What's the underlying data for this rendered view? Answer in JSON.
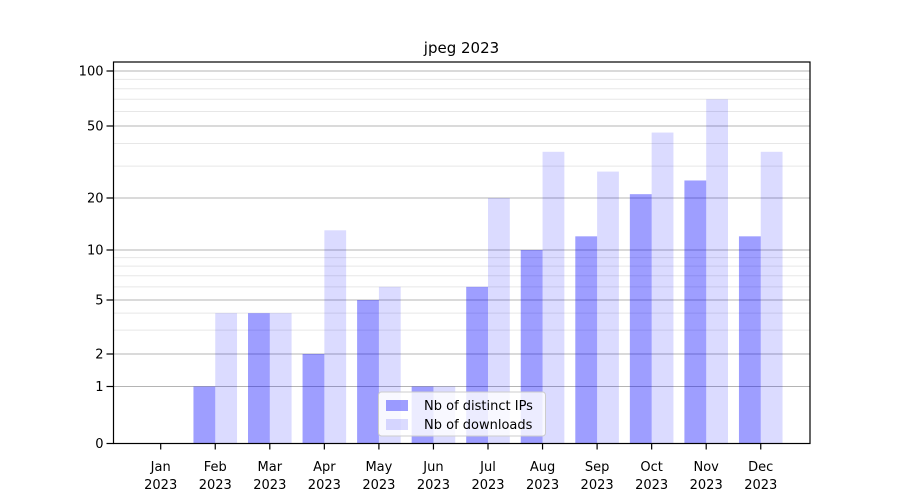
{
  "chart_data": {
    "type": "bar",
    "title": "jpeg 2023",
    "categories": [
      "Jan",
      "Feb",
      "Mar",
      "Apr",
      "May",
      "Jun",
      "Jul",
      "Aug",
      "Sep",
      "Oct",
      "Nov",
      "Dec"
    ],
    "year_label": "2023",
    "series": [
      {
        "name": "Nb of distinct IPs",
        "color": "rgba(0,0,255,0.38)",
        "color_hex": "#9e9eff",
        "values": [
          0,
          1,
          4,
          2,
          5,
          1,
          6,
          10,
          12,
          21,
          25,
          12
        ]
      },
      {
        "name": "Nb of downloads",
        "color": "rgba(0,0,255,0.14)",
        "color_hex": "#dcdcff",
        "values": [
          0,
          4,
          4,
          13,
          6,
          1,
          20,
          36,
          28,
          46,
          70,
          36
        ]
      }
    ],
    "y_ticks": [
      0,
      1,
      2,
      5,
      10,
      20,
      50,
      100
    ],
    "y_minor_ticks": [
      3,
      4,
      6,
      7,
      8,
      9,
      30,
      40,
      60,
      70,
      80,
      90
    ],
    "xlabel": "",
    "ylabel": "",
    "ylim": [
      0,
      112
    ],
    "x_range": [
      "Jan 2023",
      "Dec 2023"
    ],
    "grid": true,
    "legend_position": "lower center",
    "colors": {
      "major_grid": "#b4b4b4",
      "minor_grid": "#e7e7e7",
      "axis": "#000000",
      "legend_border": "#cccccc",
      "legend_bg": "rgba(255,255,255,0.8)"
    }
  }
}
